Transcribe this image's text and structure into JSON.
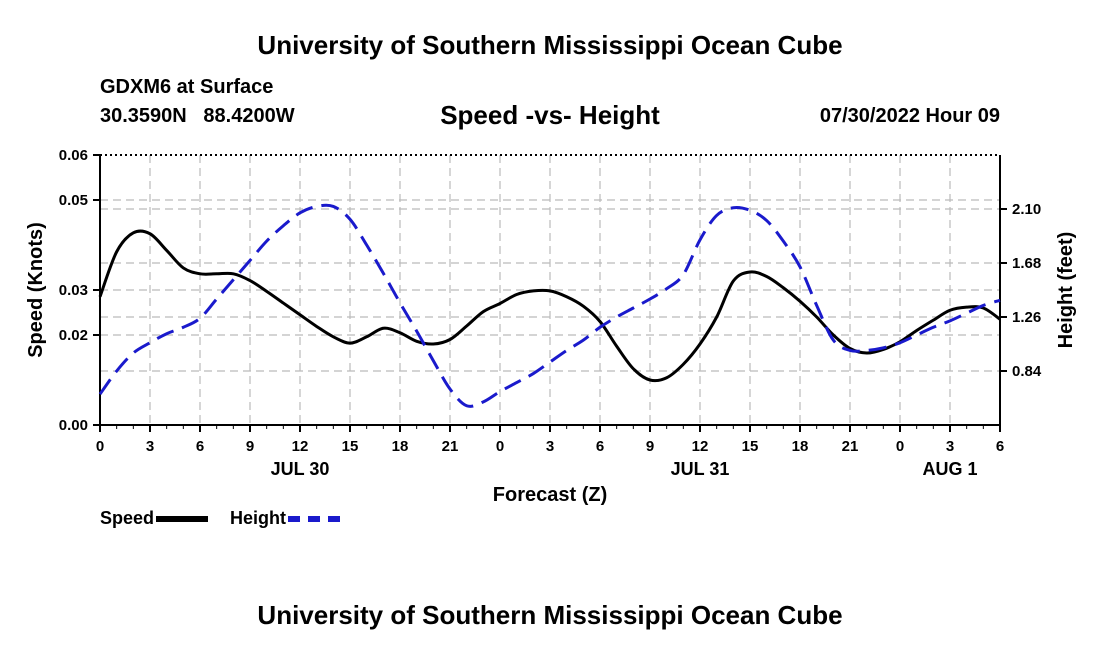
{
  "header": {
    "title": "University of Southern Mississippi Ocean Cube",
    "station": "GDXM6 at Surface",
    "coordinates": "30.3590N   88.4200W",
    "subtitle": "Speed -vs- Height",
    "datetime": "07/30/2022 Hour 09"
  },
  "footer": {
    "title": "University of Southern Mississippi Ocean Cube"
  },
  "legend": {
    "speed_label": "Speed",
    "height_label": "Height"
  },
  "colors": {
    "speed": "#000000",
    "height": "#1a1acc",
    "grid": "#bbbbbb"
  },
  "chart_data": {
    "type": "line",
    "title": "Speed -vs- Height",
    "xlabel": "Forecast (Z)",
    "ylabel": "Speed (Knots)",
    "y2label": "Height (feet)",
    "x_range": [
      0,
      54
    ],
    "x_tick_values": [
      0,
      3,
      6,
      9,
      12,
      15,
      18,
      21,
      24,
      27,
      30,
      33,
      36,
      39,
      42,
      45,
      48,
      51,
      54
    ],
    "x_tick_labels": [
      "0",
      "3",
      "6",
      "9",
      "12",
      "15",
      "18",
      "21",
      "0",
      "3",
      "6",
      "9",
      "12",
      "15",
      "18",
      "21",
      "0",
      "3",
      "6"
    ],
    "day_labels": [
      {
        "text": "JUL 30",
        "x": 12
      },
      {
        "text": "JUL 31",
        "x": 36
      },
      {
        "text": "AUG 1",
        "x": 51
      }
    ],
    "y_range": [
      0,
      0.06
    ],
    "y_ticks": [
      0,
      0.02,
      0.03,
      0.05,
      0.06
    ],
    "y_tick_labels": [
      "0.00",
      "0.02",
      "0.03",
      "0.05",
      "0.06"
    ],
    "y2_range": [
      0.42,
      2.52
    ],
    "y2_ticks": [
      0.84,
      1.26,
      1.68,
      2.1
    ],
    "y2_tick_labels": [
      "0.84",
      "1.26",
      "1.68",
      "2.10"
    ],
    "series": [
      {
        "name": "Speed",
        "axis": "left",
        "style": "solid",
        "x": [
          0,
          1,
          2,
          3,
          4,
          5,
          6,
          7,
          8,
          9,
          10,
          11,
          12,
          13,
          14,
          15,
          16,
          17,
          18,
          19,
          20,
          21,
          22,
          23,
          24,
          25,
          26,
          27,
          28,
          29,
          30,
          31,
          32,
          33,
          34,
          35,
          36,
          37,
          38,
          39,
          40,
          41,
          42,
          43,
          44,
          45,
          46,
          47,
          48,
          49,
          50,
          51,
          52,
          53,
          54
        ],
        "values": [
          0.0285,
          0.0385,
          0.0427,
          0.0425,
          0.0388,
          0.0349,
          0.0336,
          0.0336,
          0.0336,
          0.0321,
          0.0297,
          0.0271,
          0.0245,
          0.0219,
          0.0196,
          0.0182,
          0.0196,
          0.0215,
          0.0205,
          0.0186,
          0.018,
          0.019,
          0.022,
          0.0252,
          0.027,
          0.029,
          0.0298,
          0.0298,
          0.0285,
          0.0264,
          0.023,
          0.0175,
          0.0125,
          0.01,
          0.0105,
          0.0135,
          0.018,
          0.024,
          0.032,
          0.034,
          0.033,
          0.0305,
          0.0275,
          0.024,
          0.02,
          0.017,
          0.016,
          0.0168,
          0.0185,
          0.021,
          0.0233,
          0.0255,
          0.0262,
          0.026,
          0.0235
        ]
      },
      {
        "name": "Height",
        "axis": "right",
        "style": "dashed",
        "x": [
          0,
          1,
          2,
          3,
          4,
          5,
          6,
          7,
          8,
          9,
          10,
          11,
          12,
          13,
          14,
          15,
          16,
          17,
          18,
          19,
          20,
          21,
          22,
          23,
          24,
          25,
          26,
          27,
          28,
          29,
          30,
          31,
          32,
          33,
          34,
          35,
          36,
          37,
          38,
          39,
          40,
          41,
          42,
          43,
          44,
          45,
          46,
          47,
          48,
          49,
          50,
          51,
          52,
          53,
          54
        ],
        "values": [
          0.66,
          0.84,
          0.98,
          1.06,
          1.13,
          1.18,
          1.25,
          1.4,
          1.55,
          1.7,
          1.85,
          1.97,
          2.07,
          2.12,
          2.12,
          2.02,
          1.82,
          1.6,
          1.37,
          1.15,
          0.92,
          0.7,
          0.57,
          0.6,
          0.68,
          0.75,
          0.82,
          0.91,
          1.0,
          1.08,
          1.18,
          1.26,
          1.33,
          1.4,
          1.48,
          1.59,
          1.86,
          2.05,
          2.11,
          2.09,
          2.01,
          1.85,
          1.65,
          1.35,
          1.08,
          1.0,
          1.0,
          1.02,
          1.06,
          1.12,
          1.18,
          1.23,
          1.29,
          1.35,
          1.39
        ]
      }
    ]
  }
}
